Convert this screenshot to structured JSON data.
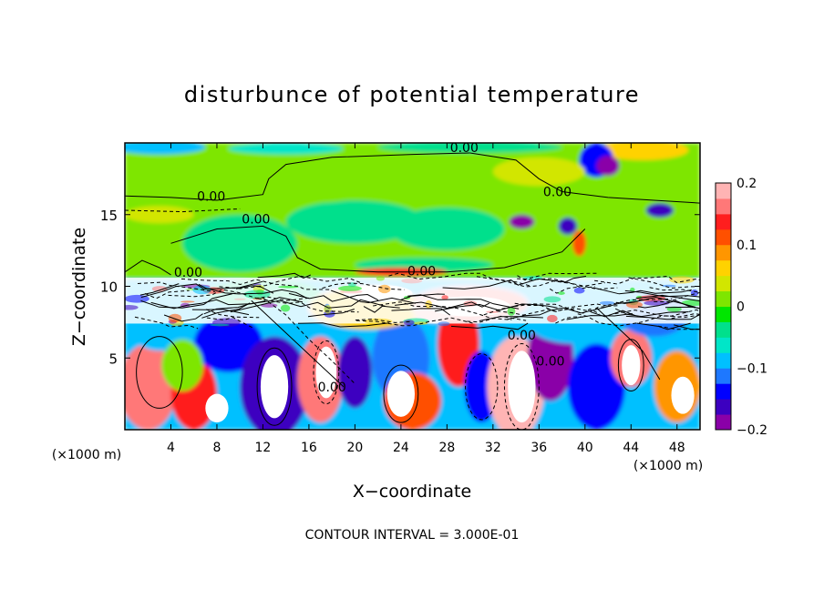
{
  "chart_data": {
    "type": "heatmap",
    "title": "disturbunce of potential temperature",
    "xlabel": "X−coordinate",
    "ylabel": "Z−coordinate",
    "x_unit": "(×1000 m)",
    "y_unit": "(×1000 m)",
    "footer": "CONTOUR INTERVAL = 3.000E-01",
    "xlim": [
      0,
      50
    ],
    "ylim": [
      0,
      20
    ],
    "x_ticks": [
      4,
      8,
      12,
      16,
      20,
      24,
      28,
      32,
      36,
      40,
      44,
      48
    ],
    "y_ticks": [
      5,
      10,
      15
    ],
    "colorbar": {
      "range": [
        -0.2,
        0.2
      ],
      "tick_labels": [
        "0.2",
        "0.1",
        "0",
        "−0.1",
        "−0.2"
      ],
      "tick_values": [
        0.2,
        0.1,
        0,
        -0.1,
        -0.2
      ],
      "colors": [
        "#8a00a8",
        "#3c00c0",
        "#0000ff",
        "#1e78ff",
        "#00c0ff",
        "#00e6c8",
        "#00e08c",
        "#00e600",
        "#7ee600",
        "#d2e600",
        "#ffd200",
        "#ff9600",
        "#ff5000",
        "#ff1e1e",
        "#ff7878",
        "#ffb4b4"
      ]
    },
    "contour_labels": [
      {
        "text": "0.00",
        "x": 29.5,
        "z": 19.5
      },
      {
        "text": "0.00",
        "x": 37.6,
        "z": 16.4
      },
      {
        "text": "0.00",
        "x": 7.5,
        "z": 16.1
      },
      {
        "text": "0.00",
        "x": 11.4,
        "z": 14.5
      },
      {
        "text": "0.00",
        "x": 25.8,
        "z": 10.9
      },
      {
        "text": "0.00",
        "x": 5.5,
        "z": 10.8
      },
      {
        "text": "0.00",
        "x": 34.5,
        "z": 6.4
      },
      {
        "text": "0.00",
        "x": 37.0,
        "z": 4.6
      },
      {
        "text": "0.00",
        "x": 18.0,
        "z": 2.8
      }
    ],
    "field_regions": {
      "upper_stratosphere_z_range": [
        10.5,
        20
      ],
      "upper_value": 0.0,
      "lower_convective_z_range": [
        0,
        10.5
      ]
    }
  }
}
